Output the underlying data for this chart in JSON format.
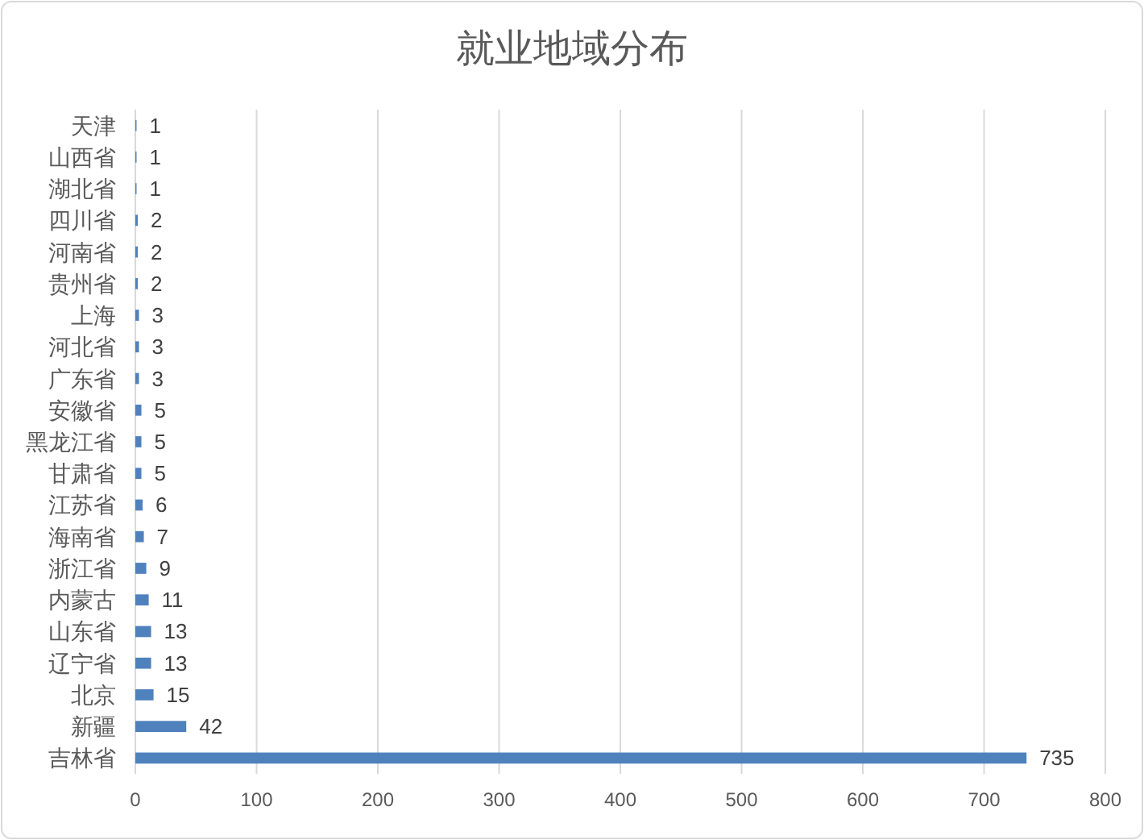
{
  "chart_data": {
    "type": "bar",
    "orientation": "horizontal",
    "title": "就业地域分布",
    "categories": [
      "天津",
      "山西省",
      "湖北省",
      "四川省",
      "河南省",
      "贵州省",
      "上海",
      "河北省",
      "广东省",
      "安徽省",
      "黑龙江省",
      "甘肃省",
      "江苏省",
      "海南省",
      "浙江省",
      "内蒙古",
      "山东省",
      "辽宁省",
      "北京",
      "新疆",
      "吉林省"
    ],
    "values": [
      1,
      1,
      1,
      2,
      2,
      2,
      3,
      3,
      3,
      5,
      5,
      5,
      6,
      7,
      9,
      11,
      13,
      13,
      15,
      42,
      735
    ],
    "color": "#4f81bd",
    "xlim": [
      0,
      800
    ],
    "xticks": [
      0,
      100,
      200,
      300,
      400,
      500,
      600,
      700,
      800
    ],
    "grid": "x",
    "data_labels": true
  }
}
